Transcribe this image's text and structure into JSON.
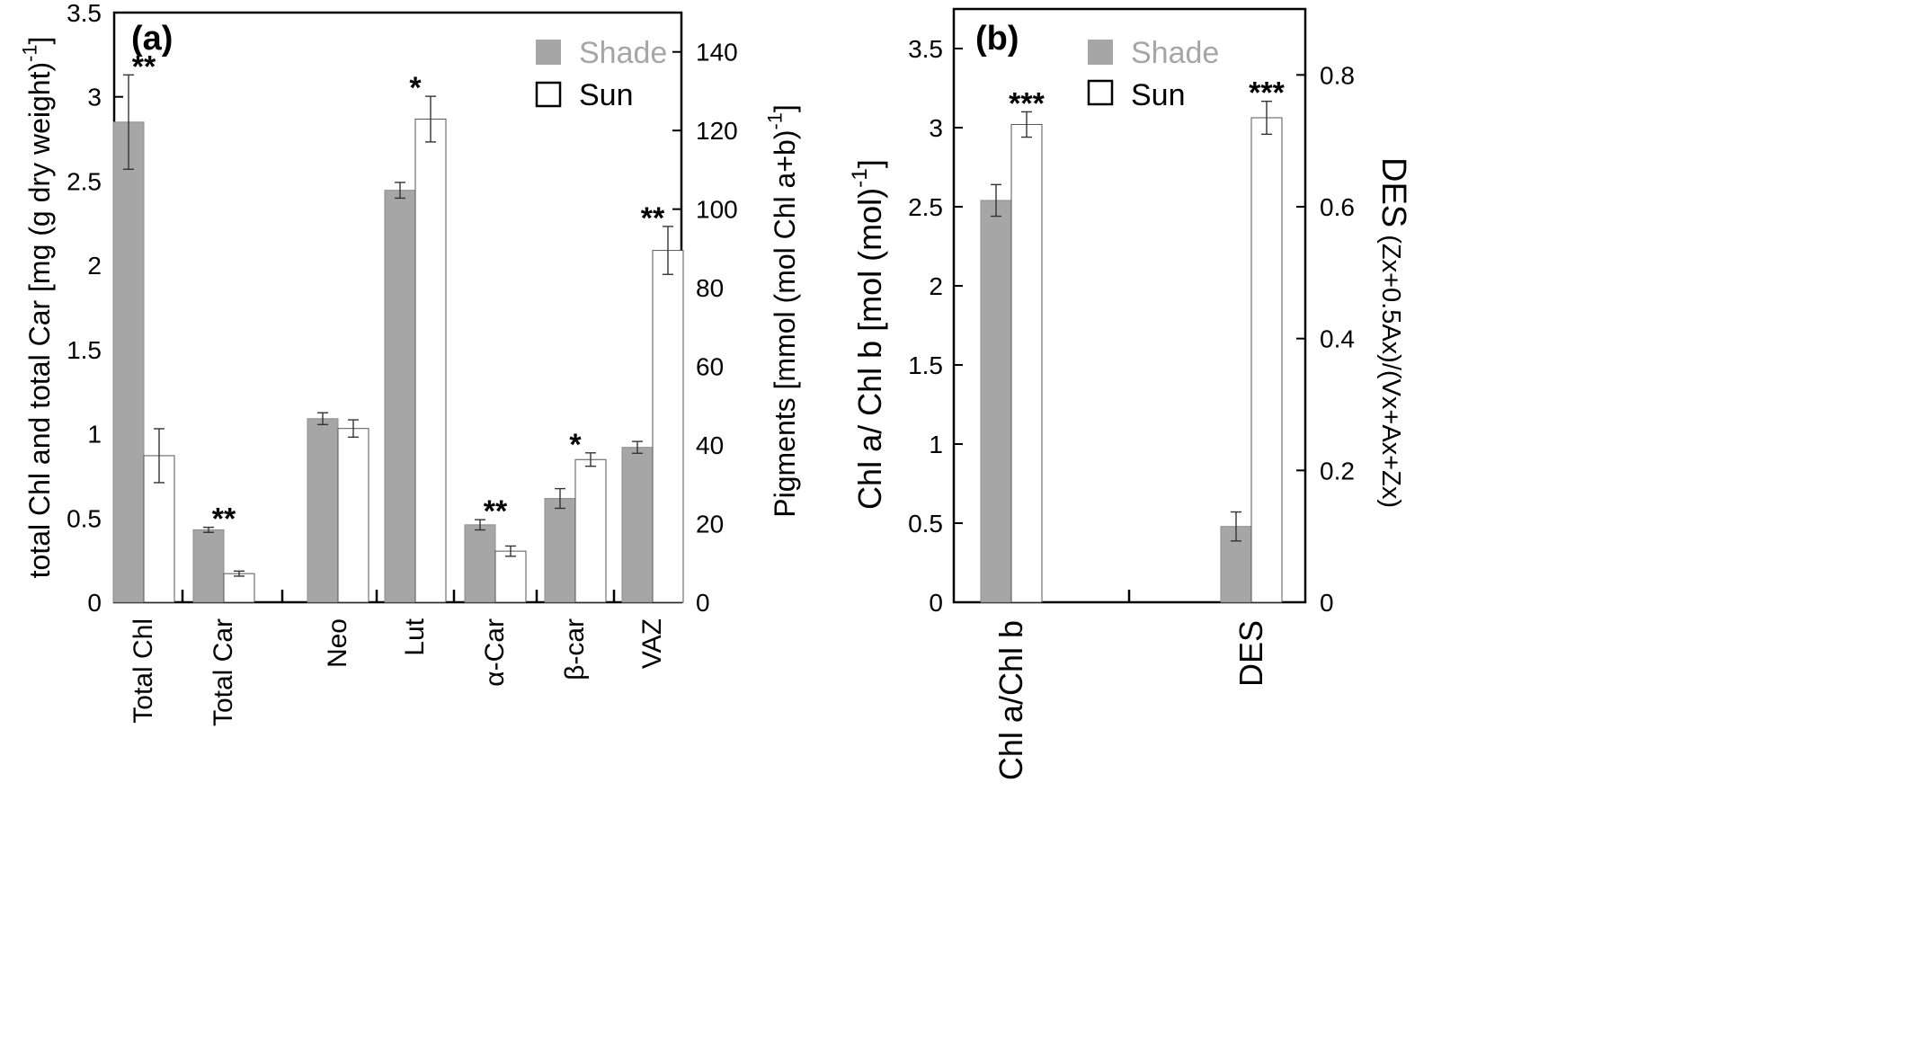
{
  "colors": {
    "shade": "#a6a6a6",
    "sun": "#ffffff",
    "axis": "#000000",
    "legend_shade_text": "#a6a6a6"
  },
  "chart_data": [
    {
      "panel_label": "(a)",
      "type": "bar",
      "legend": [
        "Shade",
        "Sun"
      ],
      "categories": [
        "Total Chl",
        "Total Car",
        "Neo",
        "Lut",
        "α-Car",
        "β-car",
        "VAZ"
      ],
      "left_axis": {
        "label": "total Chl and total Car [mg (g dry weight)",
        "label_superscript": "-1",
        "label_close": "]",
        "ylim": [
          0,
          3.5
        ],
        "ticks": [
          "0",
          "0.5",
          "1",
          "1.5",
          "2",
          "2.5",
          "3",
          "3.5"
        ]
      },
      "right_axis": {
        "label": "Pigments [mmol (mol Chl a+b)",
        "label_superscript": "-1",
        "label_close": "]",
        "ylim": [
          0,
          150
        ],
        "ticks": [
          "0",
          "20",
          "40",
          "60",
          "80",
          "100",
          "120",
          "140"
        ]
      },
      "series": [
        {
          "name": "Shade",
          "values": [
            2.85,
            0.43,
            46.7,
            104.8,
            19.7,
            26.4,
            39.4
          ],
          "errors": [
            0.28,
            0.015,
            1.5,
            2.0,
            1.3,
            2.5,
            1.5
          ]
        },
        {
          "name": "Sun",
          "values": [
            0.87,
            0.17,
            44.2,
            122.9,
            13.0,
            36.3,
            89.5
          ],
          "errors": [
            0.16,
            0.015,
            2.2,
            5.8,
            1.3,
            1.7,
            6.1
          ]
        }
      ],
      "axis_of_category": [
        "left",
        "left",
        "right",
        "right",
        "right",
        "right",
        "right"
      ],
      "significance": [
        {
          "category": "Total Chl",
          "label": "**"
        },
        {
          "category": "Total Car",
          "label": "**"
        },
        {
          "category": "Lut",
          "label": "*"
        },
        {
          "category": "α-Car",
          "label": "**"
        },
        {
          "category": "β-car",
          "label": "*"
        },
        {
          "category": "VAZ",
          "label": "**"
        }
      ]
    },
    {
      "panel_label": "(b)",
      "type": "bar",
      "legend": [
        "Shade",
        "Sun"
      ],
      "categories": [
        "Chl a/Chl b",
        "DES"
      ],
      "left_axis": {
        "label": "Chl a/ Chl b [mol (mol)",
        "label_superscript": "-1",
        "label_close": "]",
        "ylim": [
          0,
          3.75
        ],
        "ticks": [
          "0",
          "0.5",
          "1",
          "1.5",
          "2",
          "2.5",
          "3",
          "3.5"
        ]
      },
      "right_axis": {
        "label": "DES",
        "label_suffix": " (Zx+0.5Ax)/(Vx+Ax+Zx)",
        "ylim": [
          0,
          0.9
        ],
        "ticks": [
          "0",
          "0.2",
          "0.4",
          "0.6",
          "0.8"
        ]
      },
      "series": [
        {
          "name": "Shade",
          "values": [
            2.54,
            0.115
          ],
          "errors": [
            0.1,
            0.022
          ]
        },
        {
          "name": "Sun",
          "values": [
            3.02,
            0.735
          ],
          "errors": [
            0.08,
            0.025
          ]
        }
      ],
      "axis_of_category": [
        "left",
        "right"
      ],
      "significance": [
        {
          "category": "Chl a/Chl b",
          "label": "***"
        },
        {
          "category": "DES",
          "label": "***"
        }
      ]
    }
  ]
}
